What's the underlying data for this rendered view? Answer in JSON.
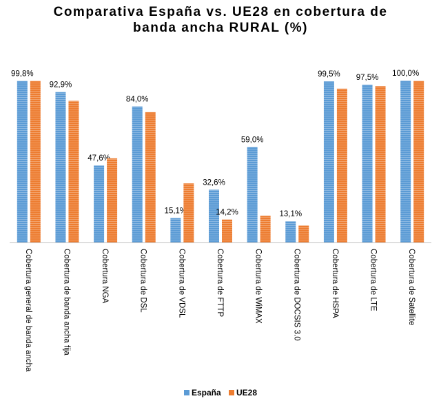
{
  "chart_data": {
    "type": "bar",
    "title_lines": [
      "Comparativa España vs. UE28 en cobertura de",
      "banda ancha RURAL (%)"
    ],
    "categories": [
      "Cobertura general de banda ancha",
      "Cobertura de banda ancha fija",
      "Cobertura NGA",
      "Cobertura de DSL",
      "Cobertura de VDSL",
      "Cobertura de FTTP",
      "Cobertura de WiMAX",
      "Cobertura de DOCSIS 3.0",
      "Cobertura de HSPA",
      "Cobertura de LTE",
      "Cobertura de Satellite"
    ],
    "series": [
      {
        "name": "España",
        "color": "#5B9BD5",
        "values": [
          99.8,
          92.9,
          47.6,
          84.0,
          15.1,
          32.6,
          59.0,
          13.1,
          99.5,
          97.5,
          100.0
        ],
        "labels": [
          "99,8%",
          "92,9%",
          "47,6%",
          "84,0%",
          "15,1%",
          "32,6%",
          "59,0%",
          "13,1%",
          "99,5%",
          "97,5%",
          "100,0%"
        ]
      },
      {
        "name": "UE28",
        "color": "#ED7D31",
        "values": [
          99.8,
          87.5,
          52.0,
          80.5,
          36.5,
          14.2,
          16.5,
          10.5,
          95.0,
          96.5,
          99.8
        ],
        "labels": [
          "",
          "",
          "",
          "",
          "",
          "14,2%",
          "",
          "",
          "",
          "",
          ""
        ]
      }
    ],
    "ylim": [
      0,
      100
    ],
    "grid": false,
    "legend": "bottom"
  }
}
